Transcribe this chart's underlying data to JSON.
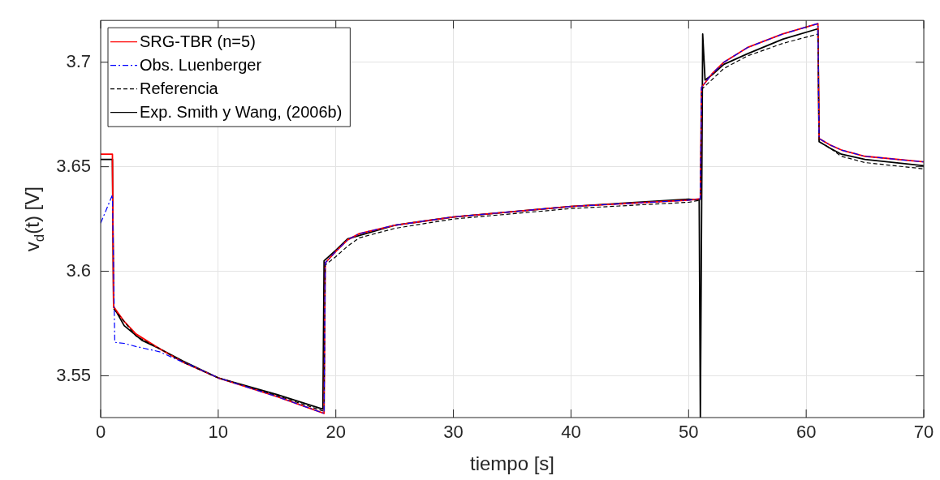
{
  "chart_data": {
    "type": "line",
    "xlabel": "tiempo [s]",
    "ylabel": "v$_{d}$(t) [V]",
    "xlim": [
      0,
      70
    ],
    "xticks": [
      0,
      10,
      20,
      30,
      40,
      50,
      60,
      70
    ],
    "ylim": [
      3.53,
      3.72
    ],
    "yticks": [
      3.55,
      3.6,
      3.65,
      3.7
    ],
    "grid": true,
    "legend": "top left",
    "marker": "none",
    "series": [
      {
        "name": "SRG-TBR (n=5)",
        "color": "#ff0000",
        "line_style": "solid",
        "x": [
          0,
          1,
          1.1,
          2,
          3,
          5,
          7,
          10,
          15,
          19,
          19.1,
          20,
          21,
          22,
          25,
          30,
          40,
          50,
          51,
          51.1,
          52,
          53,
          55,
          58,
          61,
          61.1,
          62,
          63,
          65,
          70
        ],
        "values": [
          3.656,
          3.656,
          3.583,
          3.576,
          3.57,
          3.563,
          3.5565,
          3.549,
          3.54,
          3.532,
          3.604,
          3.6095,
          3.615,
          3.618,
          3.622,
          3.626,
          3.631,
          3.634,
          3.6347,
          3.688,
          3.6945,
          3.7,
          3.707,
          3.7135,
          3.7185,
          3.6635,
          3.6605,
          3.658,
          3.655,
          3.6523
        ]
      },
      {
        "name": "Obs. Luenberger",
        "color": "#0000ff",
        "line_style": "dashdot",
        "x": [
          0,
          1,
          1.2,
          2,
          3,
          5,
          7,
          7.5,
          10,
          15,
          19,
          19.1,
          20,
          21,
          22,
          25,
          30,
          40,
          50,
          51,
          51.1,
          52,
          53,
          55,
          58,
          61,
          61.1,
          62,
          63,
          65,
          70
        ],
        "values": [
          3.623,
          3.6365,
          3.566,
          3.5655,
          3.564,
          3.5615,
          3.5565,
          3.5555,
          3.549,
          3.54,
          3.532,
          3.604,
          3.6095,
          3.615,
          3.618,
          3.622,
          3.626,
          3.631,
          3.634,
          3.6347,
          3.688,
          3.6945,
          3.7,
          3.707,
          3.7135,
          3.7185,
          3.6635,
          3.6605,
          3.658,
          3.655,
          3.6523
        ]
      },
      {
        "name": "Referencia",
        "color": "#000000",
        "line_style": "dashed",
        "x": [
          1.1,
          2,
          3,
          5,
          7,
          10,
          15,
          19,
          19.1,
          20,
          21,
          22,
          25,
          30,
          40,
          50,
          51,
          51.1,
          53,
          55,
          58,
          61,
          61.1,
          62,
          63,
          65,
          70
        ],
        "values": [
          3.582,
          3.576,
          3.569,
          3.563,
          3.5565,
          3.549,
          3.5405,
          3.533,
          3.603,
          3.607,
          3.612,
          3.616,
          3.6205,
          3.625,
          3.63,
          3.633,
          3.634,
          3.687,
          3.697,
          3.703,
          3.709,
          3.7135,
          3.662,
          3.659,
          3.655,
          3.652,
          3.649
        ]
      },
      {
        "name": "Exp. Smith y Wang, (2006b)",
        "color": "#000000",
        "line_style": "solid",
        "x": [
          0,
          1,
          1.1,
          2,
          3.5,
          5,
          7,
          10,
          15,
          18.9,
          19,
          20,
          21,
          25,
          30,
          40,
          50,
          50.9,
          51,
          51.2,
          51.4,
          52,
          53,
          55,
          58,
          61,
          61.1,
          62,
          63,
          65,
          70
        ],
        "values": [
          3.6535,
          3.6535,
          3.583,
          3.574,
          3.567,
          3.563,
          3.557,
          3.549,
          3.541,
          3.534,
          3.605,
          3.61,
          3.6155,
          3.622,
          3.626,
          3.631,
          3.6345,
          3.634,
          3.53,
          3.7135,
          3.6915,
          3.694,
          3.699,
          3.704,
          3.711,
          3.716,
          3.662,
          3.659,
          3.656,
          3.6535,
          3.6505
        ]
      }
    ]
  }
}
